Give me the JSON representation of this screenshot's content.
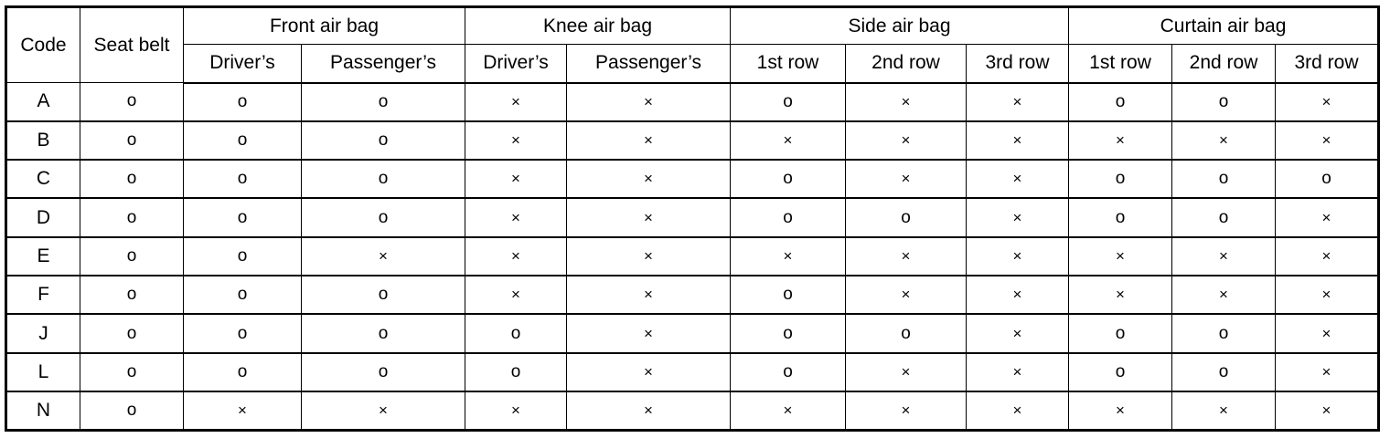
{
  "headers": {
    "code": "Code",
    "seat_belt": "Seat belt",
    "groups": [
      {
        "label": "Front air bag",
        "subs": [
          "Driver’s",
          "Passenger’s"
        ]
      },
      {
        "label": "Knee air bag",
        "subs": [
          "Driver’s",
          "Passenger’s"
        ]
      },
      {
        "label": "Side air bag",
        "subs": [
          "1st row",
          "2nd row",
          "3rd row"
        ]
      },
      {
        "label": "Curtain air bag",
        "subs": [
          "1st row",
          "2nd row",
          "3rd row"
        ]
      }
    ]
  },
  "rows": [
    {
      "code": "A",
      "values": [
        "o",
        "o",
        "o",
        "×",
        "×",
        "o",
        "×",
        "×",
        "o",
        "o",
        "×"
      ]
    },
    {
      "code": "B",
      "values": [
        "o",
        "o",
        "o",
        "×",
        "×",
        "×",
        "×",
        "×",
        "×",
        "×",
        "×"
      ]
    },
    {
      "code": "C",
      "values": [
        "o",
        "o",
        "o",
        "×",
        "×",
        "o",
        "×",
        "×",
        "o",
        "o",
        "o"
      ]
    },
    {
      "code": "D",
      "values": [
        "o",
        "o",
        "o",
        "×",
        "×",
        "o",
        "o",
        "×",
        "o",
        "o",
        "×"
      ]
    },
    {
      "code": "E",
      "values": [
        "o",
        "o",
        "×",
        "×",
        "×",
        "×",
        "×",
        "×",
        "×",
        "×",
        "×"
      ]
    },
    {
      "code": "F",
      "values": [
        "o",
        "o",
        "o",
        "×",
        "×",
        "o",
        "×",
        "×",
        "×",
        "×",
        "×"
      ]
    },
    {
      "code": "J",
      "values": [
        "o",
        "o",
        "o",
        "o",
        "×",
        "o",
        "o",
        "×",
        "o",
        "o",
        "×"
      ]
    },
    {
      "code": "L",
      "values": [
        "o",
        "o",
        "o",
        "o",
        "×",
        "o",
        "×",
        "×",
        "o",
        "o",
        "×"
      ]
    },
    {
      "code": "N",
      "values": [
        "o",
        "×",
        "×",
        "×",
        "×",
        "×",
        "×",
        "×",
        "×",
        "×",
        "×"
      ]
    }
  ]
}
